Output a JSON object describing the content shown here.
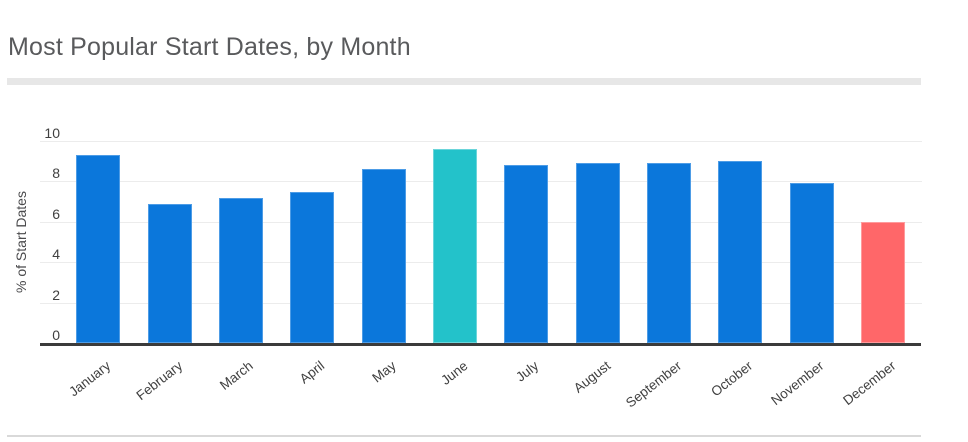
{
  "header": {
    "title": "Most Popular Start Dates, by Month"
  },
  "chart_data": {
    "type": "bar",
    "title": "Most Popular Start Dates, by Month",
    "categories": [
      "January",
      "February",
      "March",
      "April",
      "May",
      "June",
      "July",
      "August",
      "September",
      "October",
      "November",
      "December"
    ],
    "values": [
      9.3,
      6.9,
      7.2,
      7.5,
      8.6,
      9.6,
      8.8,
      8.9,
      8.9,
      9.0,
      7.9,
      6.0
    ],
    "xlabel": "",
    "ylabel": "% of Start Dates",
    "ylim": [
      0,
      10
    ],
    "yticks": [
      0,
      2,
      4,
      6,
      8,
      10
    ],
    "grid": true,
    "legend_position": "none",
    "bar_color_default": "#0b77db",
    "highlights": {
      "June": "#23c2ca",
      "December": "#ff6769"
    },
    "bar_colors": [
      "#0b77db",
      "#0b77db",
      "#0b77db",
      "#0b77db",
      "#0b77db",
      "#23c2ca",
      "#0b77db",
      "#0b77db",
      "#0b77db",
      "#0b77db",
      "#0b77db",
      "#ff6769"
    ],
    "bar_edge_colors": [
      "#4d9ce6",
      "#4d9ce6",
      "#4d9ce6",
      "#4d9ce6",
      "#4d9ce6",
      "#6bd5da",
      "#4d9ce6",
      "#4d9ce6",
      "#4d9ce6",
      "#4d9ce6",
      "#4d9ce6",
      "#ff9a9c"
    ]
  },
  "colors": {
    "background": "#ffffff",
    "title_text": "#595a5c",
    "axis_text": "#404040",
    "axis_line": "#3b3b3b",
    "gridline": "#ececec",
    "divider_top": "#e7e7e7",
    "divider_bottom": "#d9d9d9"
  }
}
